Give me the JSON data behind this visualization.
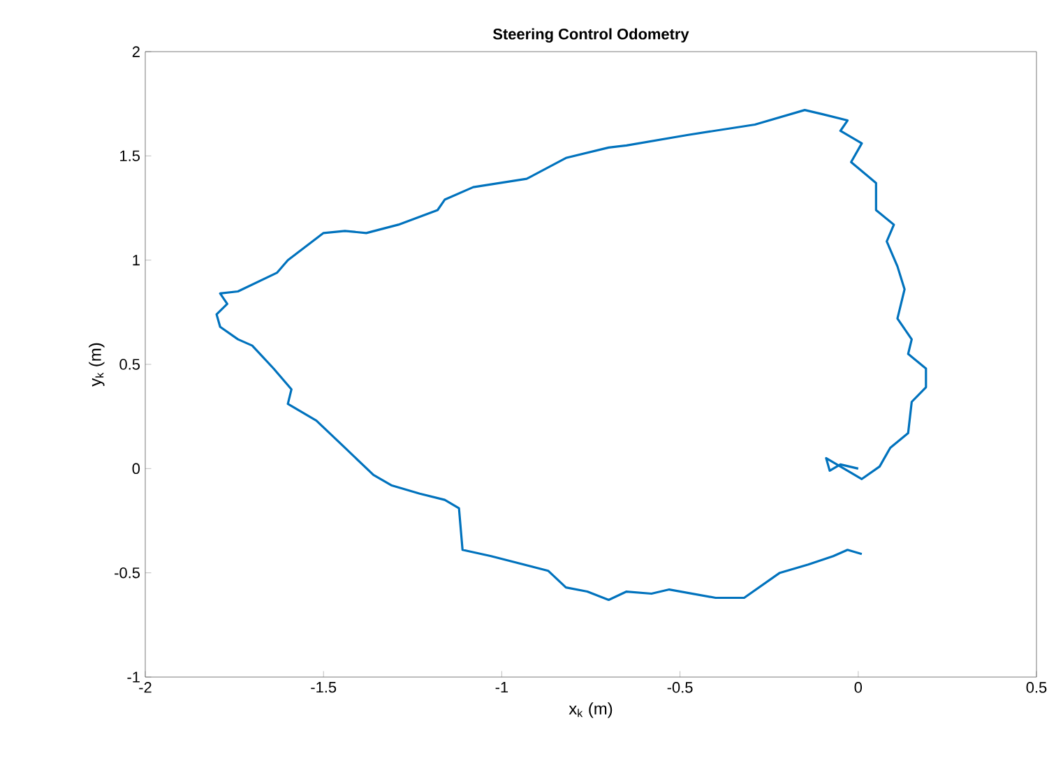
{
  "chart_data": {
    "type": "line",
    "title": "Steering Control Odometry",
    "xlabel": "x$_{k}$ (m)",
    "ylabel": "y$_{k}$ (m)",
    "series": [
      {
        "color": "#0072bd",
        "x": [
          0.01,
          -0.03,
          -0.07,
          -0.14,
          -0.22,
          -0.32,
          -0.4,
          -0.53,
          -0.58,
          -0.65,
          -0.7,
          -0.76,
          -0.82,
          -0.87,
          -1.03,
          -1.11,
          -1.12,
          -1.16,
          -1.23,
          -1.31,
          -1.36,
          -1.44,
          -1.52,
          -1.6,
          -1.59,
          -1.64,
          -1.7,
          -1.74,
          -1.79,
          -1.8,
          -1.77,
          -1.79,
          -1.74,
          -1.63,
          -1.6,
          -1.5,
          -1.44,
          -1.38,
          -1.29,
          -1.18,
          -1.16,
          -1.08,
          -0.93,
          -0.82,
          -0.7,
          -0.65,
          -0.48,
          -0.29,
          -0.15,
          -0.1,
          -0.03,
          -0.05,
          0.01,
          -0.02,
          0.05,
          0.05,
          0.1,
          0.08,
          0.11,
          0.13,
          0.11,
          0.15,
          0.14,
          0.19,
          0.19,
          0.15,
          0.14,
          0.09,
          0.06,
          0.01,
          -0.03,
          -0.09,
          -0.08,
          -0.05,
          0.0
        ],
        "values": [
          -0.41,
          -0.39,
          -0.42,
          -0.46,
          -0.5,
          -0.62,
          -0.62,
          -0.58,
          -0.6,
          -0.59,
          -0.63,
          -0.59,
          -0.57,
          -0.49,
          -0.42,
          -0.39,
          -0.19,
          -0.15,
          -0.12,
          -0.08,
          -0.03,
          0.1,
          0.23,
          0.31,
          0.38,
          0.48,
          0.59,
          0.62,
          0.68,
          0.74,
          0.79,
          0.84,
          0.85,
          0.94,
          1.0,
          1.13,
          1.14,
          1.13,
          1.17,
          1.24,
          1.29,
          1.35,
          1.39,
          1.49,
          1.54,
          1.55,
          1.6,
          1.65,
          1.72,
          1.7,
          1.67,
          1.62,
          1.56,
          1.47,
          1.37,
          1.24,
          1.17,
          1.09,
          0.97,
          0.86,
          0.72,
          0.62,
          0.55,
          0.48,
          0.39,
          0.32,
          0.17,
          0.1,
          0.01,
          -0.05,
          -0.01,
          0.05,
          -0.01,
          0.02,
          0.0
        ]
      }
    ],
    "xlim": [
      -2,
      0.5
    ],
    "ylim": [
      -1,
      2
    ],
    "xticks": [
      -2,
      -1.5,
      -1,
      -0.5,
      0,
      0.5
    ],
    "yticks": [
      -1,
      -0.5,
      0,
      0.5,
      1,
      1.5,
      2
    ],
    "marker": "none",
    "line_style": "solid"
  }
}
